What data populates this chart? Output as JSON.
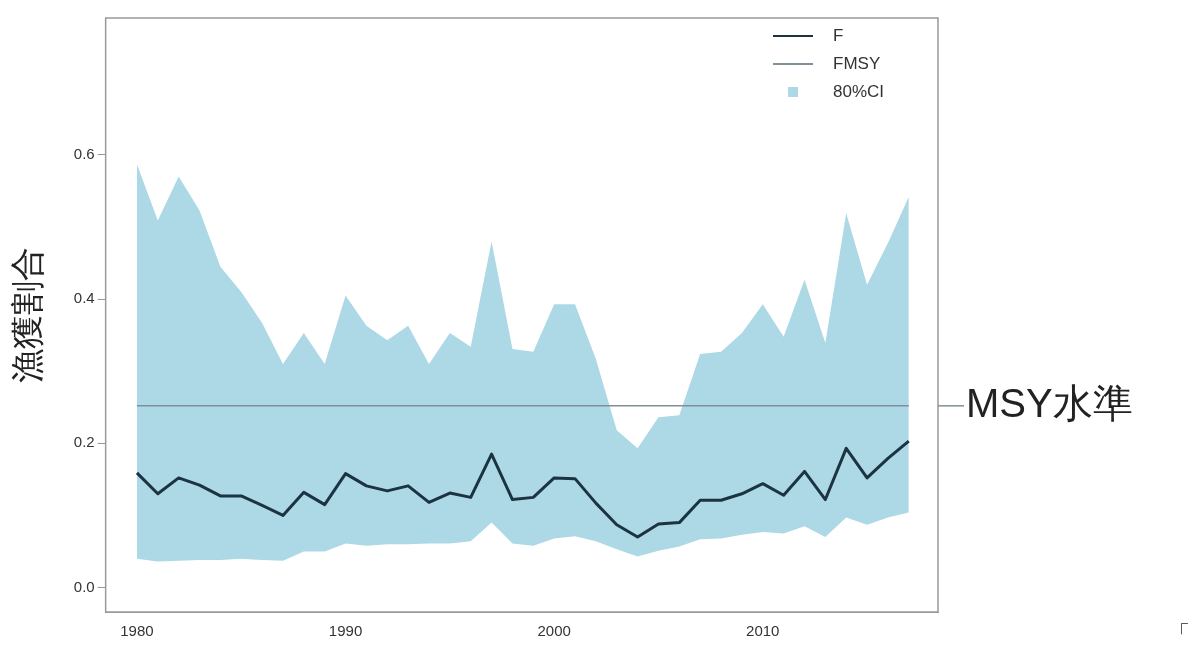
{
  "chart_data": {
    "type": "line",
    "ylabel": "漁獲割合",
    "x": [
      1980,
      1981,
      1982,
      1983,
      1984,
      1985,
      1986,
      1987,
      1988,
      1989,
      1990,
      1991,
      1992,
      1993,
      1994,
      1995,
      1996,
      1997,
      1998,
      1999,
      2000,
      2001,
      2002,
      2003,
      2004,
      2005,
      2006,
      2007,
      2008,
      2009,
      2010,
      2011,
      2012,
      2013,
      2014,
      2015,
      2016,
      2017
    ],
    "series": [
      {
        "name": "F",
        "color": "#1c3441",
        "values": [
          0.159,
          0.13,
          0.152,
          0.142,
          0.127,
          0.127,
          0.114,
          0.1,
          0.132,
          0.115,
          0.158,
          0.141,
          0.134,
          0.141,
          0.118,
          0.131,
          0.125,
          0.185,
          0.122,
          0.125,
          0.152,
          0.151,
          0.117,
          0.087,
          0.07,
          0.088,
          0.09,
          0.121,
          0.121,
          0.13,
          0.144,
          0.128,
          0.161,
          0.122,
          0.193,
          0.152,
          0.179,
          0.203
        ],
        "lower": [
          0.04,
          0.036,
          0.037,
          0.038,
          0.038,
          0.04,
          0.038,
          0.037,
          0.05,
          0.05,
          0.061,
          0.058,
          0.06,
          0.06,
          0.061,
          0.061,
          0.064,
          0.09,
          0.061,
          0.058,
          0.068,
          0.071,
          0.064,
          0.053,
          0.043,
          0.051,
          0.057,
          0.067,
          0.068,
          0.073,
          0.077,
          0.075,
          0.085,
          0.07,
          0.097,
          0.087,
          0.097,
          0.104
        ],
        "upper": [
          0.587,
          0.509,
          0.57,
          0.523,
          0.445,
          0.41,
          0.367,
          0.31,
          0.353,
          0.31,
          0.405,
          0.363,
          0.343,
          0.363,
          0.31,
          0.353,
          0.334,
          0.48,
          0.331,
          0.327,
          0.393,
          0.393,
          0.317,
          0.218,
          0.193,
          0.236,
          0.239,
          0.324,
          0.327,
          0.353,
          0.393,
          0.348,
          0.427,
          0.339,
          0.519,
          0.42,
          0.478,
          0.542
        ]
      },
      {
        "name": "FMSY",
        "color": "#7f9098",
        "values": [
          0.252,
          0.252,
          0.252,
          0.252,
          0.252,
          0.252,
          0.252,
          0.252,
          0.252,
          0.252,
          0.252,
          0.252,
          0.252,
          0.252,
          0.252,
          0.252,
          0.252,
          0.252,
          0.252,
          0.252,
          0.252,
          0.252,
          0.252,
          0.252,
          0.252,
          0.252,
          0.252,
          0.252,
          0.252,
          0.252,
          0.252,
          0.252,
          0.252,
          0.252,
          0.252,
          0.252,
          0.252,
          0.252
        ]
      }
    ],
    "annotations": [
      "80%CI",
      "MSY水準",
      "「"
    ],
    "xlim": [
      1978.5,
      2018.4
    ],
    "xticks": [
      1980,
      1990,
      2000,
      2010
    ],
    "ylim": [
      -0.034,
      0.79
    ],
    "yticks": [
      {
        "value": 0,
        "label": "0.0"
      },
      0.2,
      0.4,
      0.6
    ],
    "legend": "top right",
    "grid": false
  }
}
